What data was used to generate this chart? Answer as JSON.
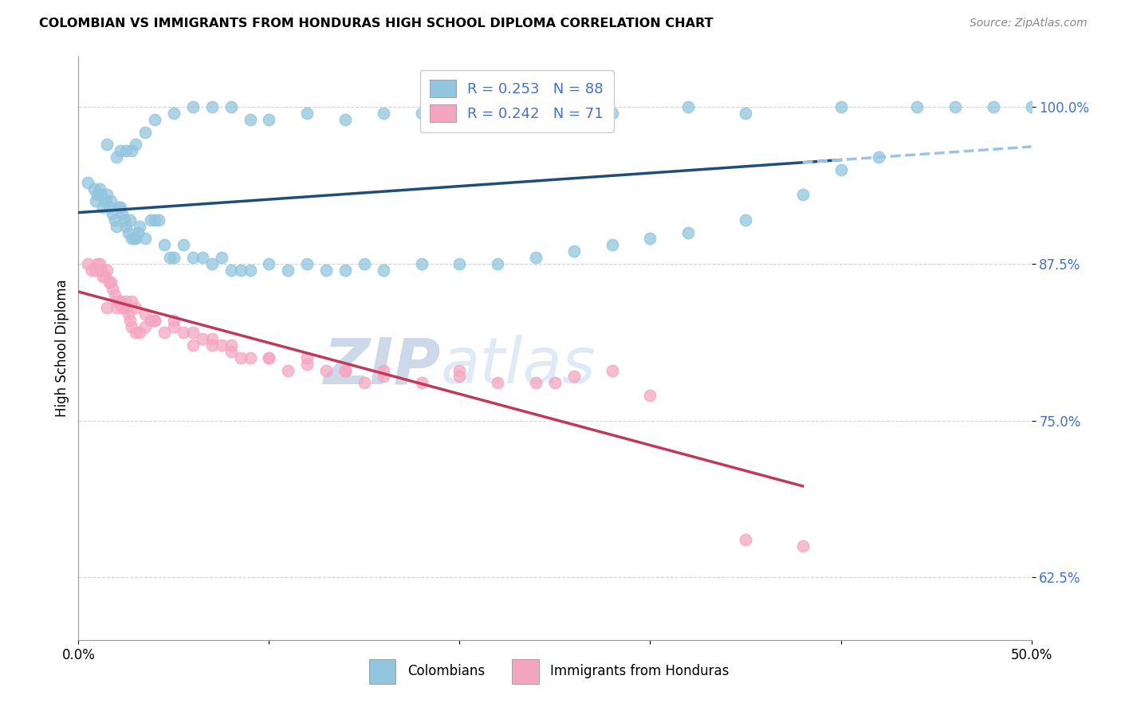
{
  "title": "COLOMBIAN VS IMMIGRANTS FROM HONDURAS HIGH SCHOOL DIPLOMA CORRELATION CHART",
  "source": "Source: ZipAtlas.com",
  "ylabel": "High School Diploma",
  "ytick_labels": [
    "62.5%",
    "75.0%",
    "87.5%",
    "100.0%"
  ],
  "ytick_values": [
    0.625,
    0.75,
    0.875,
    1.0
  ],
  "xlim": [
    0.0,
    0.5
  ],
  "ylim": [
    0.575,
    1.04
  ],
  "legend_R1": "R = 0.253",
  "legend_N1": "N = 88",
  "legend_R2": "R = 0.242",
  "legend_N2": "N = 71",
  "color_blue": "#92c5de",
  "color_pink": "#f4a6c0",
  "trendline_blue": "#1f4e79",
  "trendline_pink": "#c0395a",
  "trendline_dashed": "#9dc3e6",
  "watermark_color": "#cdd8ee",
  "title_color": "#000000",
  "source_color": "#888888",
  "label_color": "#4472c4",
  "scatter_blue_x": [
    0.005,
    0.008,
    0.009,
    0.01,
    0.011,
    0.012,
    0.013,
    0.014,
    0.015,
    0.016,
    0.017,
    0.018,
    0.019,
    0.02,
    0.021,
    0.022,
    0.023,
    0.024,
    0.025,
    0.026,
    0.027,
    0.028,
    0.029,
    0.03,
    0.031,
    0.032,
    0.035,
    0.038,
    0.04,
    0.042,
    0.045,
    0.048,
    0.05,
    0.055,
    0.06,
    0.065,
    0.07,
    0.075,
    0.08,
    0.085,
    0.09,
    0.1,
    0.11,
    0.12,
    0.13,
    0.14,
    0.15,
    0.16,
    0.18,
    0.2,
    0.22,
    0.24,
    0.26,
    0.28,
    0.3,
    0.32,
    0.35,
    0.38,
    0.4,
    0.42,
    0.015,
    0.02,
    0.022,
    0.025,
    0.028,
    0.03,
    0.035,
    0.04,
    0.05,
    0.06,
    0.07,
    0.08,
    0.09,
    0.1,
    0.12,
    0.14,
    0.16,
    0.18,
    0.22,
    0.25,
    0.28,
    0.32,
    0.35,
    0.4,
    0.44,
    0.46,
    0.48,
    0.5
  ],
  "scatter_blue_y": [
    0.94,
    0.935,
    0.925,
    0.93,
    0.935,
    0.93,
    0.92,
    0.925,
    0.93,
    0.92,
    0.925,
    0.915,
    0.91,
    0.905,
    0.92,
    0.92,
    0.915,
    0.91,
    0.905,
    0.9,
    0.91,
    0.895,
    0.895,
    0.895,
    0.9,
    0.905,
    0.895,
    0.91,
    0.91,
    0.91,
    0.89,
    0.88,
    0.88,
    0.89,
    0.88,
    0.88,
    0.875,
    0.88,
    0.87,
    0.87,
    0.87,
    0.875,
    0.87,
    0.875,
    0.87,
    0.87,
    0.875,
    0.87,
    0.875,
    0.875,
    0.875,
    0.88,
    0.885,
    0.89,
    0.895,
    0.9,
    0.91,
    0.93,
    0.95,
    0.96,
    0.97,
    0.96,
    0.965,
    0.965,
    0.965,
    0.97,
    0.98,
    0.99,
    0.995,
    1.0,
    1.0,
    1.0,
    0.99,
    0.99,
    0.995,
    0.99,
    0.995,
    0.995,
    0.995,
    0.995,
    0.995,
    1.0,
    0.995,
    1.0,
    1.0,
    1.0,
    1.0,
    1.0
  ],
  "scatter_pink_x": [
    0.005,
    0.007,
    0.009,
    0.01,
    0.011,
    0.012,
    0.013,
    0.014,
    0.015,
    0.016,
    0.017,
    0.018,
    0.019,
    0.02,
    0.021,
    0.022,
    0.023,
    0.024,
    0.025,
    0.026,
    0.027,
    0.028,
    0.03,
    0.032,
    0.035,
    0.038,
    0.04,
    0.045,
    0.05,
    0.055,
    0.06,
    0.065,
    0.07,
    0.075,
    0.08,
    0.085,
    0.09,
    0.1,
    0.11,
    0.12,
    0.13,
    0.14,
    0.15,
    0.16,
    0.18,
    0.2,
    0.22,
    0.24,
    0.26,
    0.28,
    0.015,
    0.02,
    0.022,
    0.025,
    0.028,
    0.03,
    0.035,
    0.04,
    0.05,
    0.06,
    0.07,
    0.08,
    0.1,
    0.12,
    0.14,
    0.16,
    0.2,
    0.25,
    0.3,
    0.35,
    0.38
  ],
  "scatter_pink_y": [
    0.875,
    0.87,
    0.87,
    0.875,
    0.875,
    0.87,
    0.865,
    0.865,
    0.87,
    0.86,
    0.86,
    0.855,
    0.85,
    0.845,
    0.845,
    0.845,
    0.84,
    0.84,
    0.84,
    0.835,
    0.83,
    0.825,
    0.82,
    0.82,
    0.825,
    0.83,
    0.83,
    0.82,
    0.825,
    0.82,
    0.81,
    0.815,
    0.81,
    0.81,
    0.805,
    0.8,
    0.8,
    0.8,
    0.79,
    0.795,
    0.79,
    0.79,
    0.78,
    0.785,
    0.78,
    0.785,
    0.78,
    0.78,
    0.785,
    0.79,
    0.84,
    0.84,
    0.845,
    0.845,
    0.845,
    0.84,
    0.835,
    0.83,
    0.83,
    0.82,
    0.815,
    0.81,
    0.8,
    0.8,
    0.79,
    0.79,
    0.79,
    0.78,
    0.77,
    0.655,
    0.65
  ]
}
